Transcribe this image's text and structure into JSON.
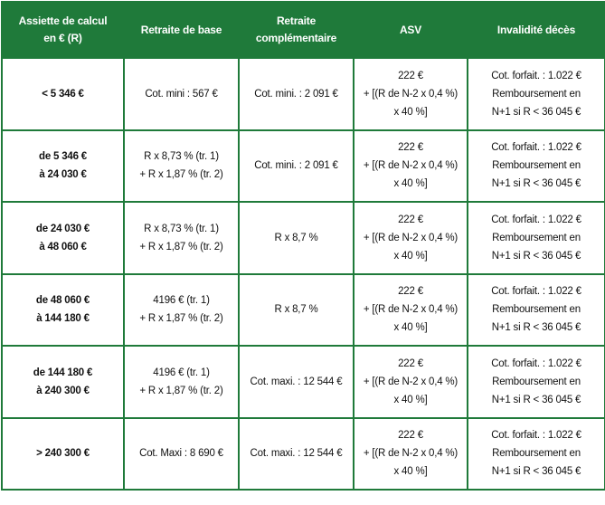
{
  "table": {
    "header": [
      [
        "Assiette de calcul",
        "en € (R)"
      ],
      [
        "Retraite de base"
      ],
      [
        "Retraite",
        "complémentaire"
      ],
      [
        "ASV"
      ],
      [
        "Invalidité décès"
      ]
    ],
    "rows": [
      [
        [
          "< 5 346 €"
        ],
        [
          "Cot. mini : 567 €"
        ],
        [
          "Cot. mini. : 2 091 €"
        ],
        [
          "222 €",
          "+ [(R de N-2 x 0,4 %)",
          "x 40 %]"
        ],
        [
          "Cot. forfait. : 1.022 €",
          "Remboursement en",
          "N+1 si R < 36 045 €"
        ]
      ],
      [
        [
          "de 5 346 €",
          "à 24 030 €"
        ],
        [
          "R x 8,73 % (tr. 1)",
          "+ R x 1,87 % (tr. 2)"
        ],
        [
          "Cot. mini. : 2 091 €"
        ],
        [
          "222 €",
          "+ [(R de N-2 x 0,4 %)",
          "x 40 %]"
        ],
        [
          "Cot. forfait. : 1.022 €",
          "Remboursement en",
          "N+1 si R < 36 045 €"
        ]
      ],
      [
        [
          "de 24 030 €",
          "à 48 060 €"
        ],
        [
          "R x 8,73 % (tr. 1)",
          "+ R x 1,87 % (tr. 2)"
        ],
        [
          "R x 8,7 %"
        ],
        [
          "222 €",
          "+ [(R de N-2 x 0,4 %)",
          "x 40 %]"
        ],
        [
          "Cot. forfait. : 1.022 €",
          "Remboursement en",
          "N+1 si R < 36 045 €"
        ]
      ],
      [
        [
          "de 48 060 €",
          "à 144 180 €"
        ],
        [
          "4196 € (tr. 1)",
          "+ R x 1,87 % (tr. 2)"
        ],
        [
          "R x 8,7 %"
        ],
        [
          "222 €",
          "+ [(R de N-2 x 0,4 %)",
          "x 40 %]"
        ],
        [
          "Cot. forfait. : 1.022 €",
          "Remboursement en",
          "N+1 si R < 36 045 €"
        ]
      ],
      [
        [
          "de 144 180 €",
          "à 240 300 €"
        ],
        [
          "4196 € (tr. 1)",
          "+ R x 1,87 % (tr. 2)"
        ],
        [
          "Cot. maxi. : 12 544 €"
        ],
        [
          "222 €",
          "+ [(R de N-2 x 0,4 %)",
          "x 40 %]"
        ],
        [
          "Cot. forfait. : 1.022 €",
          "Remboursement en",
          "N+1 si R < 36 045 €"
        ]
      ],
      [
        [
          "> 240 300 €"
        ],
        [
          "Cot. Maxi : 8 690 €"
        ],
        [
          "Cot. maxi. : 12 544 €"
        ],
        [
          "222 €",
          "+ [(R de N-2 x 0,4 %)",
          "x 40 %]"
        ],
        [
          "Cot. forfait. : 1.022 €",
          "Remboursement en",
          "N+1 si R < 36 045 €"
        ]
      ]
    ]
  }
}
